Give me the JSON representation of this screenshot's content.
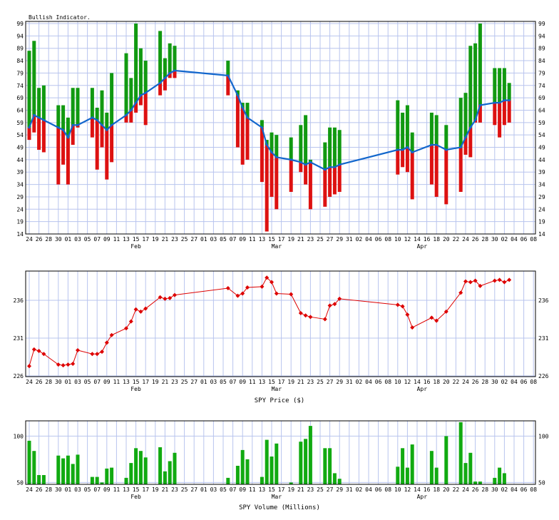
{
  "charts": {
    "indicator": {
      "title": "Bullish Indicator.",
      "y_ticks": [
        "99",
        "94",
        "89",
        "84",
        "79",
        "74",
        "69",
        "64",
        "59",
        "54",
        "49",
        "44",
        "39",
        "34",
        "29",
        "24",
        "19",
        "14"
      ],
      "x_ticks": [
        "24",
        "26",
        "28",
        "30",
        "01",
        "03",
        "05",
        "07",
        "09",
        "11",
        "13",
        "15",
        "17",
        "19",
        "21",
        "23",
        "25",
        "27",
        "01",
        "03",
        "05",
        "07",
        "09",
        "11",
        "13",
        "15",
        "17",
        "19",
        "21",
        "23",
        "25",
        "27",
        "29",
        "31",
        "02",
        "04",
        "06",
        "08",
        "10",
        "12",
        "14",
        "16",
        "18",
        "20",
        "22",
        "24",
        "26",
        "28",
        "30",
        "02",
        "04",
        "06",
        "08"
      ],
      "months": [
        "Feb",
        "Mar",
        "Apr"
      ]
    },
    "price": {
      "xlabel": "SPY Price ($)",
      "y_ticks": [
        "236",
        "231",
        "226"
      ],
      "x_ticks": [
        "24",
        "26",
        "28",
        "30",
        "01",
        "03",
        "05",
        "07",
        "09",
        "11",
        "13",
        "15",
        "17",
        "19",
        "21",
        "23",
        "25",
        "27",
        "01",
        "03",
        "05",
        "07",
        "09",
        "11",
        "13",
        "15",
        "17",
        "19",
        "21",
        "23",
        "25",
        "27",
        "29",
        "31",
        "02",
        "04",
        "06",
        "08",
        "10",
        "12",
        "14",
        "16",
        "18",
        "20",
        "22",
        "24",
        "26",
        "28",
        "30",
        "02",
        "04",
        "06",
        "08"
      ],
      "months": [
        "Feb",
        "Mar",
        "Apr"
      ]
    },
    "volume": {
      "xlabel": "SPY Volume (Millions)",
      "y_ticks": [
        "100",
        "50"
      ],
      "x_ticks": [
        "24",
        "26",
        "28",
        "30",
        "01",
        "03",
        "05",
        "07",
        "09",
        "11",
        "13",
        "15",
        "17",
        "19",
        "21",
        "23",
        "25",
        "27",
        "01",
        "03",
        "05",
        "07",
        "09",
        "11",
        "13",
        "15",
        "17",
        "19",
        "21",
        "23",
        "25",
        "27",
        "29",
        "31",
        "02",
        "04",
        "06",
        "08",
        "10",
        "12",
        "14",
        "16",
        "18",
        "20",
        "22",
        "24",
        "26",
        "28",
        "30",
        "02",
        "04",
        "06",
        "08"
      ],
      "months": [
        "Feb",
        "Mar",
        "Apr"
      ]
    }
  },
  "colors": {
    "up": "#119911",
    "down": "#dd1111",
    "line": "#1166cc",
    "price": "#dd0000",
    "volume": "#11aa11",
    "grid": "#b8c4ee"
  },
  "chart_data": [
    {
      "type": "bar",
      "title": "Bullish Indicator.",
      "ylim": [
        14,
        99
      ],
      "x_slots": 105,
      "bars": [
        {
          "slot": 0,
          "top": 88,
          "bottom": 52
        },
        {
          "slot": 1,
          "top": 92,
          "bottom": 55
        },
        {
          "slot": 2,
          "top": 73,
          "bottom": 48
        },
        {
          "slot": 3,
          "top": 74,
          "bottom": 47
        },
        {
          "slot": 6,
          "top": 66,
          "bottom": 34
        },
        {
          "slot": 7,
          "top": 66,
          "bottom": 42
        },
        {
          "slot": 8,
          "top": 61,
          "bottom": 34
        },
        {
          "slot": 9,
          "top": 73,
          "bottom": 50
        },
        {
          "slot": 10,
          "top": 73,
          "bottom": 57
        },
        {
          "slot": 13,
          "top": 73,
          "bottom": 53
        },
        {
          "slot": 14,
          "top": 65,
          "bottom": 40
        },
        {
          "slot": 15,
          "top": 72,
          "bottom": 49
        },
        {
          "slot": 16,
          "top": 63,
          "bottom": 36
        },
        {
          "slot": 17,
          "top": 79,
          "bottom": 43
        },
        {
          "slot": 20,
          "top": 87,
          "bottom": 59
        },
        {
          "slot": 21,
          "top": 77,
          "bottom": 59
        },
        {
          "slot": 22,
          "top": 99,
          "bottom": 63
        },
        {
          "slot": 23,
          "top": 89,
          "bottom": 66
        },
        {
          "slot": 24,
          "top": 84,
          "bottom": 58
        },
        {
          "slot": 27,
          "top": 96,
          "bottom": 70
        },
        {
          "slot": 28,
          "top": 85,
          "bottom": 72
        },
        {
          "slot": 29,
          "top": 91,
          "bottom": 77
        },
        {
          "slot": 30,
          "top": 90,
          "bottom": 77
        },
        {
          "slot": 41,
          "top": 84,
          "bottom": 70
        },
        {
          "slot": 43,
          "top": 72,
          "bottom": 49
        },
        {
          "slot": 44,
          "top": 67,
          "bottom": 42
        },
        {
          "slot": 45,
          "top": 67,
          "bottom": 44
        },
        {
          "slot": 48,
          "top": 60,
          "bottom": 35
        },
        {
          "slot": 49,
          "top": 52,
          "bottom": 15
        },
        {
          "slot": 50,
          "top": 55,
          "bottom": 29
        },
        {
          "slot": 51,
          "top": 54,
          "bottom": 24
        },
        {
          "slot": 54,
          "top": 53,
          "bottom": 31
        },
        {
          "slot": 56,
          "top": 58,
          "bottom": 39
        },
        {
          "slot": 57,
          "top": 62,
          "bottom": 34
        },
        {
          "slot": 58,
          "top": 44,
          "bottom": 24
        },
        {
          "slot": 61,
          "top": 51,
          "bottom": 25
        },
        {
          "slot": 62,
          "top": 57,
          "bottom": 29
        },
        {
          "slot": 63,
          "top": 57,
          "bottom": 30
        },
        {
          "slot": 64,
          "top": 56,
          "bottom": 31
        },
        {
          "slot": 76,
          "top": 68,
          "bottom": 38
        },
        {
          "slot": 77,
          "top": 63,
          "bottom": 41
        },
        {
          "slot": 78,
          "top": 66,
          "bottom": 39
        },
        {
          "slot": 79,
          "top": 55,
          "bottom": 28
        },
        {
          "slot": 83,
          "top": 63,
          "bottom": 34
        },
        {
          "slot": 84,
          "top": 62,
          "bottom": 29
        },
        {
          "slot": 86,
          "top": 58,
          "bottom": 26
        },
        {
          "slot": 89,
          "top": 69,
          "bottom": 31
        },
        {
          "slot": 90,
          "top": 71,
          "bottom": 46
        },
        {
          "slot": 91,
          "top": 90,
          "bottom": 45
        },
        {
          "slot": 92,
          "top": 91,
          "bottom": 59
        },
        {
          "slot": 93,
          "top": 99,
          "bottom": 59
        },
        {
          "slot": 96,
          "top": 81,
          "bottom": 58
        },
        {
          "slot": 97,
          "top": 81,
          "bottom": 53
        },
        {
          "slot": 98,
          "top": 81,
          "bottom": 58
        },
        {
          "slot": 99,
          "top": 75,
          "bottom": 59
        }
      ],
      "line": [
        {
          "slot": 0,
          "y": 57
        },
        {
          "slot": 1,
          "y": 62
        },
        {
          "slot": 2,
          "y": 61
        },
        {
          "slot": 3,
          "y": 60
        },
        {
          "slot": 6,
          "y": 57
        },
        {
          "slot": 7,
          "y": 56
        },
        {
          "slot": 8,
          "y": 53
        },
        {
          "slot": 9,
          "y": 58
        },
        {
          "slot": 10,
          "y": 58
        },
        {
          "slot": 13,
          "y": 61
        },
        {
          "slot": 14,
          "y": 60
        },
        {
          "slot": 15,
          "y": 58
        },
        {
          "slot": 16,
          "y": 56
        },
        {
          "slot": 17,
          "y": 58
        },
        {
          "slot": 20,
          "y": 62
        },
        {
          "slot": 21,
          "y": 64
        },
        {
          "slot": 22,
          "y": 67
        },
        {
          "slot": 23,
          "y": 70
        },
        {
          "slot": 24,
          "y": 71
        },
        {
          "slot": 27,
          "y": 75
        },
        {
          "slot": 28,
          "y": 77
        },
        {
          "slot": 29,
          "y": 79
        },
        {
          "slot": 30,
          "y": 80
        },
        {
          "slot": 41,
          "y": 78
        },
        {
          "slot": 43,
          "y": 70
        },
        {
          "slot": 44,
          "y": 65
        },
        {
          "slot": 45,
          "y": 61
        },
        {
          "slot": 48,
          "y": 57
        },
        {
          "slot": 49,
          "y": 50
        },
        {
          "slot": 50,
          "y": 47
        },
        {
          "slot": 51,
          "y": 45
        },
        {
          "slot": 54,
          "y": 44
        },
        {
          "slot": 56,
          "y": 43
        },
        {
          "slot": 57,
          "y": 42
        },
        {
          "slot": 58,
          "y": 43
        },
        {
          "slot": 61,
          "y": 40
        },
        {
          "slot": 62,
          "y": 41
        },
        {
          "slot": 63,
          "y": 41
        },
        {
          "slot": 64,
          "y": 42
        },
        {
          "slot": 76,
          "y": 48
        },
        {
          "slot": 77,
          "y": 48
        },
        {
          "slot": 78,
          "y": 49
        },
        {
          "slot": 79,
          "y": 47
        },
        {
          "slot": 83,
          "y": 50
        },
        {
          "slot": 84,
          "y": 50
        },
        {
          "slot": 86,
          "y": 48
        },
        {
          "slot": 89,
          "y": 49
        },
        {
          "slot": 90,
          "y": 53
        },
        {
          "slot": 91,
          "y": 57
        },
        {
          "slot": 92,
          "y": 60
        },
        {
          "slot": 93,
          "y": 66
        },
        {
          "slot": 96,
          "y": 67
        },
        {
          "slot": 97,
          "y": 67
        },
        {
          "slot": 98,
          "y": 68
        },
        {
          "slot": 99,
          "y": 68
        }
      ]
    },
    {
      "type": "line",
      "xlabel": "SPY Price ($)",
      "ylim": [
        226,
        240
      ],
      "x_slots": 105,
      "points": [
        {
          "slot": 0,
          "y": 227.3
        },
        {
          "slot": 1,
          "y": 229.5
        },
        {
          "slot": 2,
          "y": 229.3
        },
        {
          "slot": 3,
          "y": 228.9
        },
        {
          "slot": 6,
          "y": 227.5
        },
        {
          "slot": 7,
          "y": 227.4
        },
        {
          "slot": 8,
          "y": 227.5
        },
        {
          "slot": 9,
          "y": 227.6
        },
        {
          "slot": 10,
          "y": 229.4
        },
        {
          "slot": 13,
          "y": 228.9
        },
        {
          "slot": 14,
          "y": 228.9
        },
        {
          "slot": 15,
          "y": 229.2
        },
        {
          "slot": 16,
          "y": 230.4
        },
        {
          "slot": 17,
          "y": 231.4
        },
        {
          "slot": 20,
          "y": 232.3
        },
        {
          "slot": 21,
          "y": 233.2
        },
        {
          "slot": 22,
          "y": 234.8
        },
        {
          "slot": 23,
          "y": 234.5
        },
        {
          "slot": 24,
          "y": 234.9
        },
        {
          "slot": 27,
          "y": 236.4
        },
        {
          "slot": 28,
          "y": 236.2
        },
        {
          "slot": 29,
          "y": 236.3
        },
        {
          "slot": 30,
          "y": 236.7
        },
        {
          "slot": 41,
          "y": 237.6
        },
        {
          "slot": 43,
          "y": 236.6
        },
        {
          "slot": 44,
          "y": 236.9
        },
        {
          "slot": 45,
          "y": 237.7
        },
        {
          "slot": 48,
          "y": 237.8
        },
        {
          "slot": 49,
          "y": 239.0
        },
        {
          "slot": 50,
          "y": 238.4
        },
        {
          "slot": 51,
          "y": 236.9
        },
        {
          "slot": 54,
          "y": 236.8
        },
        {
          "slot": 56,
          "y": 234.3
        },
        {
          "slot": 57,
          "y": 234.0
        },
        {
          "slot": 58,
          "y": 233.8
        },
        {
          "slot": 61,
          "y": 233.5
        },
        {
          "slot": 62,
          "y": 235.3
        },
        {
          "slot": 63,
          "y": 235.5
        },
        {
          "slot": 64,
          "y": 236.2
        },
        {
          "slot": 76,
          "y": 235.4
        },
        {
          "slot": 77,
          "y": 235.2
        },
        {
          "slot": 78,
          "y": 234.1
        },
        {
          "slot": 79,
          "y": 232.4
        },
        {
          "slot": 83,
          "y": 233.7
        },
        {
          "slot": 84,
          "y": 233.3
        },
        {
          "slot": 86,
          "y": 234.5
        },
        {
          "slot": 89,
          "y": 237.0
        },
        {
          "slot": 90,
          "y": 238.5
        },
        {
          "slot": 91,
          "y": 238.4
        },
        {
          "slot": 92,
          "y": 238.6
        },
        {
          "slot": 93,
          "y": 237.9
        },
        {
          "slot": 96,
          "y": 238.6
        },
        {
          "slot": 97,
          "y": 238.7
        },
        {
          "slot": 98,
          "y": 238.4
        },
        {
          "slot": 99,
          "y": 238.7
        }
      ]
    },
    {
      "type": "bar",
      "xlabel": "SPY Volume (Millions)",
      "ylim": [
        48,
        118
      ],
      "x_slots": 105,
      "bars": [
        {
          "slot": 0,
          "value": 95
        },
        {
          "slot": 1,
          "value": 84
        },
        {
          "slot": 2,
          "value": 58
        },
        {
          "slot": 3,
          "value": 58
        },
        {
          "slot": 6,
          "value": 79
        },
        {
          "slot": 7,
          "value": 76
        },
        {
          "slot": 8,
          "value": 79
        },
        {
          "slot": 9,
          "value": 70
        },
        {
          "slot": 10,
          "value": 80
        },
        {
          "slot": 13,
          "value": 56
        },
        {
          "slot": 14,
          "value": 56
        },
        {
          "slot": 15,
          "value": 50
        },
        {
          "slot": 16,
          "value": 65
        },
        {
          "slot": 17,
          "value": 66
        },
        {
          "slot": 20,
          "value": 55
        },
        {
          "slot": 21,
          "value": 71
        },
        {
          "slot": 22,
          "value": 87
        },
        {
          "slot": 23,
          "value": 84
        },
        {
          "slot": 24,
          "value": 77
        },
        {
          "slot": 27,
          "value": 88
        },
        {
          "slot": 28,
          "value": 62
        },
        {
          "slot": 29,
          "value": 73
        },
        {
          "slot": 30,
          "value": 82
        },
        {
          "slot": 41,
          "value": 55
        },
        {
          "slot": 43,
          "value": 68
        },
        {
          "slot": 44,
          "value": 85
        },
        {
          "slot": 45,
          "value": 75
        },
        {
          "slot": 48,
          "value": 56
        },
        {
          "slot": 49,
          "value": 96
        },
        {
          "slot": 50,
          "value": 78
        },
        {
          "slot": 51,
          "value": 92
        },
        {
          "slot": 54,
          "value": 50
        },
        {
          "slot": 56,
          "value": 94
        },
        {
          "slot": 57,
          "value": 97
        },
        {
          "slot": 58,
          "value": 111
        },
        {
          "slot": 61,
          "value": 87
        },
        {
          "slot": 62,
          "value": 87
        },
        {
          "slot": 63,
          "value": 60
        },
        {
          "slot": 64,
          "value": 54
        },
        {
          "slot": 76,
          "value": 67
        },
        {
          "slot": 77,
          "value": 87
        },
        {
          "slot": 78,
          "value": 66
        },
        {
          "slot": 79,
          "value": 91
        },
        {
          "slot": 83,
          "value": 84
        },
        {
          "slot": 84,
          "value": 66
        },
        {
          "slot": 86,
          "value": 100
        },
        {
          "slot": 89,
          "value": 115
        },
        {
          "slot": 90,
          "value": 71
        },
        {
          "slot": 91,
          "value": 82
        },
        {
          "slot": 92,
          "value": 51
        },
        {
          "slot": 93,
          "value": 51
        },
        {
          "slot": 96,
          "value": 55
        },
        {
          "slot": 97,
          "value": 66
        },
        {
          "slot": 98,
          "value": 60
        }
      ]
    }
  ]
}
